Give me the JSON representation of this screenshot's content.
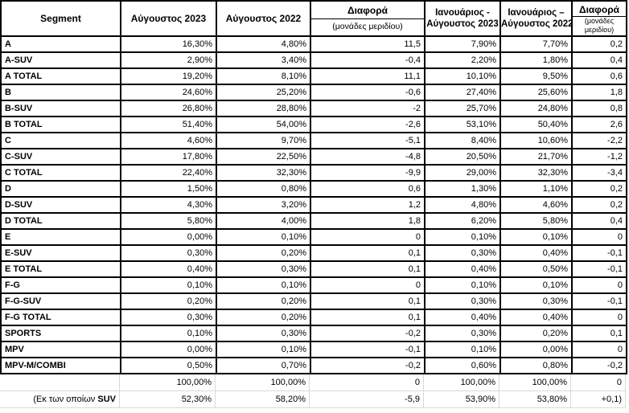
{
  "colors": {
    "table_border": "#000000",
    "gridline": "#d9d9d9",
    "text": "#000000",
    "background": "#ffffff"
  },
  "table": {
    "headers": {
      "segment": "Segment",
      "aug2023": "Αύγουστος 2023",
      "aug2022": "Αύγουστος 2022",
      "diff1_title": "Διαφορά",
      "diff1_sub": "(μονάδες μεριδίου)",
      "jan_aug2023_line1": "Ιανουάριος -",
      "jan_aug2023_line2": "Αύγουστος 2023",
      "jan_aug2022_line1": "Ιανουάριος –",
      "jan_aug2022_line2": "Αύγουστος 2022",
      "diff2_title": "Διαφορά",
      "diff2_sub_line1": "(μονάδες",
      "diff2_sub_line2": "μεριδίου)"
    },
    "rows": [
      {
        "segment": "A",
        "aug2023": "16,30%",
        "aug2022": "4,80%",
        "diff1": "11,5",
        "janaug2023": "7,90%",
        "janaug2022": "7,70%",
        "diff2": "0,2"
      },
      {
        "segment": "A-SUV",
        "aug2023": "2,90%",
        "aug2022": "3,40%",
        "diff1": "-0,4",
        "janaug2023": "2,20%",
        "janaug2022": "1,80%",
        "diff2": "0,4"
      },
      {
        "segment": "A TOTAL",
        "aug2023": "19,20%",
        "aug2022": "8,10%",
        "diff1": "11,1",
        "janaug2023": "10,10%",
        "janaug2022": "9,50%",
        "diff2": "0,6"
      },
      {
        "segment": "B",
        "aug2023": "24,60%",
        "aug2022": "25,20%",
        "diff1": "-0,6",
        "janaug2023": "27,40%",
        "janaug2022": "25,60%",
        "diff2": "1,8"
      },
      {
        "segment": "B-SUV",
        "aug2023": "26,80%",
        "aug2022": "28,80%",
        "diff1": "-2",
        "janaug2023": "25,70%",
        "janaug2022": "24,80%",
        "diff2": "0,8"
      },
      {
        "segment": "B TOTAL",
        "aug2023": "51,40%",
        "aug2022": "54,00%",
        "diff1": "-2,6",
        "janaug2023": "53,10%",
        "janaug2022": "50,40%",
        "diff2": "2,6"
      },
      {
        "segment": "C",
        "aug2023": "4,60%",
        "aug2022": "9,70%",
        "diff1": "-5,1",
        "janaug2023": "8,40%",
        "janaug2022": "10,60%",
        "diff2": "-2,2"
      },
      {
        "segment": "C-SUV",
        "aug2023": "17,80%",
        "aug2022": "22,50%",
        "diff1": "-4,8",
        "janaug2023": "20,50%",
        "janaug2022": "21,70%",
        "diff2": "-1,2"
      },
      {
        "segment": "C TOTAL",
        "aug2023": "22,40%",
        "aug2022": "32,30%",
        "diff1": "-9,9",
        "janaug2023": "29,00%",
        "janaug2022": "32,30%",
        "diff2": "-3,4"
      },
      {
        "segment": "D",
        "aug2023": "1,50%",
        "aug2022": "0,80%",
        "diff1": "0,6",
        "janaug2023": "1,30%",
        "janaug2022": "1,10%",
        "diff2": "0,2"
      },
      {
        "segment": "D-SUV",
        "aug2023": "4,30%",
        "aug2022": "3,20%",
        "diff1": "1,2",
        "janaug2023": "4,80%",
        "janaug2022": "4,60%",
        "diff2": "0,2"
      },
      {
        "segment": "D TOTAL",
        "aug2023": "5,80%",
        "aug2022": "4,00%",
        "diff1": "1,8",
        "janaug2023": "6,20%",
        "janaug2022": "5,80%",
        "diff2": "0,4"
      },
      {
        "segment": "E",
        "aug2023": "0,00%",
        "aug2022": "0,10%",
        "diff1": "0",
        "janaug2023": "0,10%",
        "janaug2022": "0,10%",
        "diff2": "0"
      },
      {
        "segment": "E-SUV",
        "aug2023": "0,30%",
        "aug2022": "0,20%",
        "diff1": "0,1",
        "janaug2023": "0,30%",
        "janaug2022": "0,40%",
        "diff2": "-0,1"
      },
      {
        "segment": "E TOTAL",
        "aug2023": "0,40%",
        "aug2022": "0,30%",
        "diff1": "0,1",
        "janaug2023": "0,40%",
        "janaug2022": "0,50%",
        "diff2": "-0,1"
      },
      {
        "segment": "F-G",
        "aug2023": "0,10%",
        "aug2022": "0,10%",
        "diff1": "0",
        "janaug2023": "0,10%",
        "janaug2022": "0,10%",
        "diff2": "0"
      },
      {
        "segment": "F-G-SUV",
        "aug2023": "0,20%",
        "aug2022": "0,20%",
        "diff1": "0,1",
        "janaug2023": "0,30%",
        "janaug2022": "0,30%",
        "diff2": "-0,1"
      },
      {
        "segment": "F-G TOTAL",
        "aug2023": "0,30%",
        "aug2022": "0,20%",
        "diff1": "0,1",
        "janaug2023": "0,40%",
        "janaug2022": "0,40%",
        "diff2": "0"
      },
      {
        "segment": "SPORTS",
        "aug2023": "0,10%",
        "aug2022": "0,30%",
        "diff1": "-0,2",
        "janaug2023": "0,30%",
        "janaug2022": "0,20%",
        "diff2": "0,1"
      },
      {
        "segment": "MPV",
        "aug2023": "0,00%",
        "aug2022": "0,10%",
        "diff1": "-0,1",
        "janaug2023": "0,10%",
        "janaug2022": "0,00%",
        "diff2": "0"
      },
      {
        "segment": "MPV-M/COMBI",
        "aug2023": "0,50%",
        "aug2022": "0,70%",
        "diff1": "-0,2",
        "janaug2023": "0,60%",
        "janaug2022": "0,80%",
        "diff2": "-0,2"
      }
    ],
    "totals_row": {
      "segment": "",
      "aug2023": "100,00%",
      "aug2022": "100,00%",
      "diff1": "0",
      "janaug2023": "100,00%",
      "janaug2022": "100,00%",
      "diff2": "0"
    },
    "suv_row": {
      "label_prefix": "(Εκ των οποίων ",
      "label_bold": "SUV",
      "aug2023": "52,30%",
      "aug2022": "58,20%",
      "diff1": "-5,9",
      "janaug2023": "53,90%",
      "janaug2022": "53,80%",
      "diff2": "+0,1)"
    }
  }
}
